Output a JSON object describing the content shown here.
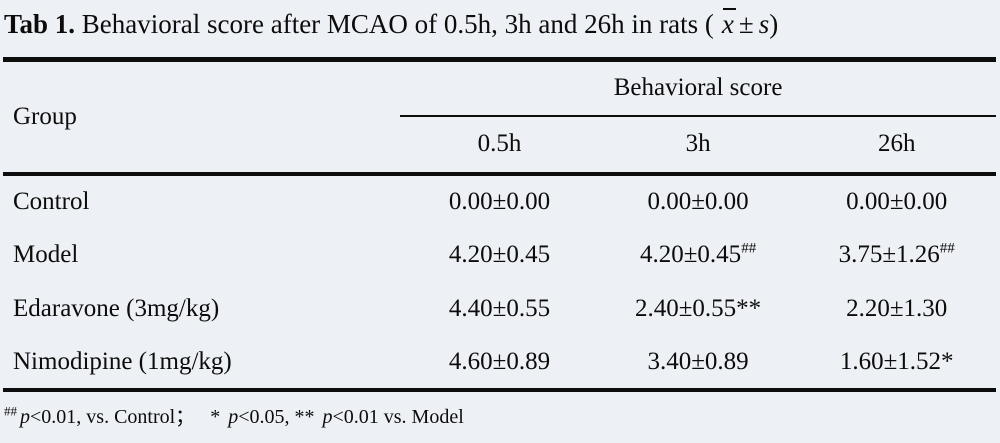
{
  "title": {
    "label": "Tab 1.",
    "text": " Behavioral score after MCAO of 0.5h, 3h and 26h in rats (",
    "xbar": "x",
    "pm": "±",
    "s": "s",
    "close": ")"
  },
  "table": {
    "group_header": "Group",
    "span_header": "Behavioral score",
    "time_headers": [
      "0.5h",
      "3h",
      "26h"
    ],
    "rows": [
      {
        "group": "Control",
        "cells": [
          {
            "text": "0.00±0.00",
            "sup": ""
          },
          {
            "text": "0.00±0.00",
            "sup": ""
          },
          {
            "text": "0.00±0.00",
            "sup": ""
          }
        ]
      },
      {
        "group": "Model",
        "cells": [
          {
            "text": "4.20±0.45",
            "sup": ""
          },
          {
            "text": "4.20±0.45",
            "sup": "##"
          },
          {
            "text": "3.75±1.26",
            "sup": "##"
          }
        ]
      },
      {
        "group": "Edaravone (3mg/kg)",
        "cells": [
          {
            "text": "4.40±0.55",
            "sup": ""
          },
          {
            "text": "2.40±0.55**",
            "sup": ""
          },
          {
            "text": "2.20±1.30",
            "sup": ""
          }
        ]
      },
      {
        "group": "Nimodipine (1mg/kg)",
        "cells": [
          {
            "text": "4.60±0.89",
            "sup": ""
          },
          {
            "text": "3.40±0.89",
            "sup": ""
          },
          {
            "text": "1.60±1.52*",
            "sup": ""
          }
        ]
      }
    ]
  },
  "footnote": {
    "parts": [
      "##",
      "p",
      "<0.01, vs. Control；",
      " * ",
      "p",
      "<0.05, ** ",
      "p",
      "<0.01 vs. Model"
    ]
  },
  "colors": {
    "background": "#edf0f4",
    "text": "#0c0c0c",
    "rule": "#0d0d0d"
  }
}
